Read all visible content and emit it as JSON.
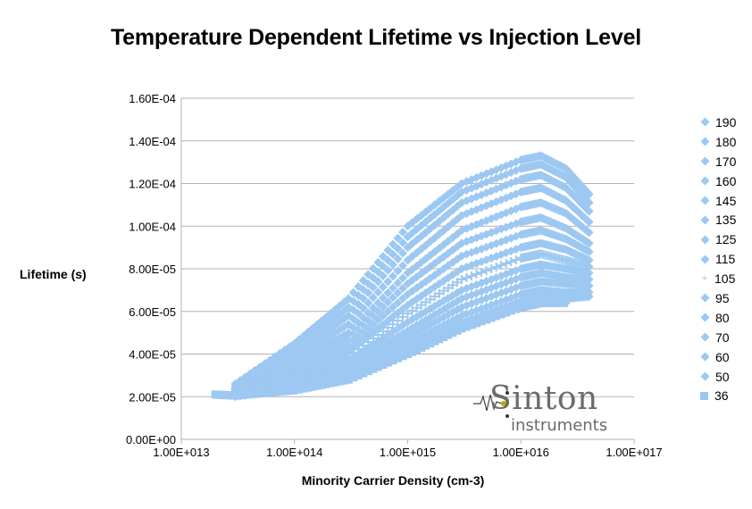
{
  "chart_data": {
    "type": "scatter",
    "title": "Temperature Dependent Lifetime vs Injection Level",
    "xlabel": "Minority Carrier Density (cm-3)",
    "ylabel": "Lifetime (s)",
    "x_scale": "log",
    "xlim": [
      10000000000000.0,
      1e+17
    ],
    "ylim": [
      0,
      0.00016
    ],
    "x_ticks": [
      "1.00E+013",
      "1.00E+014",
      "1.00E+015",
      "1.00E+016",
      "1.00E+017"
    ],
    "y_ticks": [
      "0.00E+00",
      "2.00E-05",
      "4.00E-05",
      "6.00E-05",
      "8.00E-05",
      "1.00E-04",
      "1.20E-04",
      "1.40E-04",
      "1.60E-04"
    ],
    "grid": "horizontal",
    "legend_position": "right",
    "marker_color": "#9cc8f2",
    "series": [
      {
        "name": "190",
        "marker": "diamond",
        "points": [
          [
            30000000000000.0,
            2.6e-05
          ],
          [
            100000000000000.0,
            4.5e-05
          ],
          [
            300000000000000.0,
            6.6e-05
          ],
          [
            1000000000000000.0,
            0.0001
          ],
          [
            3000000000000000.0,
            0.00012
          ],
          [
            1e+16,
            0.000131
          ],
          [
            1.5e+16,
            0.000133
          ],
          [
            2.5e+16,
            0.000127
          ],
          [
            4e+16,
            0.000115
          ]
        ]
      },
      {
        "name": "180",
        "marker": "diamond",
        "points": [
          [
            30000000000000.0,
            2.5e-05
          ],
          [
            100000000000000.0,
            4.2e-05
          ],
          [
            300000000000000.0,
            6.2e-05
          ],
          [
            1000000000000000.0,
            9.5e-05
          ],
          [
            3000000000000000.0,
            0.000116
          ],
          [
            1e+16,
            0.000127
          ],
          [
            1.5e+16,
            0.000129
          ],
          [
            2.5e+16,
            0.000123
          ],
          [
            4e+16,
            0.000111
          ]
        ]
      },
      {
        "name": "170",
        "marker": "diamond",
        "points": [
          [
            30000000000000.0,
            2.4e-05
          ],
          [
            100000000000000.0,
            4e-05
          ],
          [
            300000000000000.0,
            5.8e-05
          ],
          [
            1000000000000000.0,
            9e-05
          ],
          [
            3000000000000000.0,
            0.000111
          ],
          [
            1e+16,
            0.000122
          ],
          [
            1.5e+16,
            0.000124
          ],
          [
            2.5e+16,
            0.000118
          ],
          [
            4e+16,
            0.000107
          ]
        ]
      },
      {
        "name": "160",
        "marker": "diamond",
        "points": [
          [
            30000000000000.0,
            2.35e-05
          ],
          [
            100000000000000.0,
            3.8e-05
          ],
          [
            300000000000000.0,
            5.4e-05
          ],
          [
            1000000000000000.0,
            8.4e-05
          ],
          [
            3000000000000000.0,
            0.000105
          ],
          [
            1e+16,
            0.000116
          ],
          [
            1.5e+16,
            0.000118
          ],
          [
            2.5e+16,
            0.000112
          ],
          [
            4e+16,
            0.000102
          ]
        ]
      },
      {
        "name": "145",
        "marker": "diamond",
        "points": [
          [
            30000000000000.0,
            2.3e-05
          ],
          [
            100000000000000.0,
            3.6e-05
          ],
          [
            300000000000000.0,
            5e-05
          ],
          [
            1000000000000000.0,
            7.8e-05
          ],
          [
            3000000000000000.0,
            9.8e-05
          ],
          [
            1e+16,
            0.000109
          ],
          [
            1.5e+16,
            0.000111
          ],
          [
            2.5e+16,
            0.000106
          ],
          [
            4e+16,
            9.7e-05
          ]
        ]
      },
      {
        "name": "135",
        "marker": "diamond",
        "points": [
          [
            30000000000000.0,
            2.25e-05
          ],
          [
            100000000000000.0,
            3.4e-05
          ],
          [
            300000000000000.0,
            4.7e-05
          ],
          [
            1000000000000000.0,
            7.3e-05
          ],
          [
            3000000000000000.0,
            9.2e-05
          ],
          [
            1e+16,
            0.000102
          ],
          [
            1.5e+16,
            0.000104
          ],
          [
            2.5e+16,
            9.9e-05
          ],
          [
            4e+16,
            9.2e-05
          ]
        ]
      },
      {
        "name": "125",
        "marker": "diamond",
        "points": [
          [
            30000000000000.0,
            2.2e-05
          ],
          [
            100000000000000.0,
            3.2e-05
          ],
          [
            300000000000000.0,
            4.4e-05
          ],
          [
            1000000000000000.0,
            6.8e-05
          ],
          [
            3000000000000000.0,
            8.6e-05
          ],
          [
            1e+16,
            9.6e-05
          ],
          [
            1.5e+16,
            9.8e-05
          ],
          [
            2.5e+16,
            9.4e-05
          ],
          [
            4e+16,
            8.8e-05
          ]
        ]
      },
      {
        "name": "115",
        "marker": "diamond",
        "points": [
          [
            30000000000000.0,
            2.15e-05
          ],
          [
            100000000000000.0,
            3e-05
          ],
          [
            300000000000000.0,
            4.1e-05
          ],
          [
            1000000000000000.0,
            6.3e-05
          ],
          [
            3000000000000000.0,
            8e-05
          ],
          [
            1e+16,
            9e-05
          ],
          [
            1.5e+16,
            9.2e-05
          ],
          [
            2.5e+16,
            8.9e-05
          ],
          [
            4e+16,
            8.4e-05
          ]
        ]
      },
      {
        "name": "105",
        "marker": "star",
        "points": [
          [
            30000000000000.0,
            2.1e-05
          ],
          [
            100000000000000.0,
            2.9e-05
          ],
          [
            300000000000000.0,
            3.9e-05
          ],
          [
            1000000000000000.0,
            5.9e-05
          ],
          [
            3000000000000000.0,
            7.5e-05
          ],
          [
            1e+16,
            8.5e-05
          ],
          [
            1.5e+16,
            8.7e-05
          ],
          [
            2.5e+16,
            8.4e-05
          ],
          [
            4e+16,
            8.1e-05
          ]
        ]
      },
      {
        "name": "95",
        "marker": "diamond",
        "points": [
          [
            30000000000000.0,
            2.1e-05
          ],
          [
            100000000000000.0,
            2.8e-05
          ],
          [
            300000000000000.0,
            3.7e-05
          ],
          [
            1000000000000000.0,
            5.5e-05
          ],
          [
            3000000000000000.0,
            7e-05
          ],
          [
            1e+16,
            8e-05
          ],
          [
            1.5e+16,
            8.2e-05
          ],
          [
            2.5e+16,
            8e-05
          ],
          [
            4e+16,
            7.8e-05
          ]
        ]
      },
      {
        "name": "80",
        "marker": "diamond",
        "points": [
          [
            30000000000000.0,
            2.05e-05
          ],
          [
            100000000000000.0,
            2.7e-05
          ],
          [
            300000000000000.0,
            3.5e-05
          ],
          [
            1000000000000000.0,
            5.1e-05
          ],
          [
            3000000000000000.0,
            6.6e-05
          ],
          [
            1e+16,
            7.6e-05
          ],
          [
            1.5e+16,
            7.8e-05
          ],
          [
            2.5e+16,
            7.6e-05
          ],
          [
            4e+16,
            7.5e-05
          ]
        ]
      },
      {
        "name": "70",
        "marker": "diamond",
        "points": [
          [
            30000000000000.0,
            2.05e-05
          ],
          [
            100000000000000.0,
            2.6e-05
          ],
          [
            300000000000000.0,
            3.3e-05
          ],
          [
            1000000000000000.0,
            4.8e-05
          ],
          [
            3000000000000000.0,
            6.2e-05
          ],
          [
            1e+16,
            7.2e-05
          ],
          [
            1.5e+16,
            7.4e-05
          ],
          [
            2.5e+16,
            7.3e-05
          ],
          [
            4e+16,
            7.2e-05
          ]
        ]
      },
      {
        "name": "60",
        "marker": "diamond",
        "points": [
          [
            30000000000000.0,
            2e-05
          ],
          [
            100000000000000.0,
            2.5e-05
          ],
          [
            300000000000000.0,
            3.1e-05
          ],
          [
            1000000000000000.0,
            4.5e-05
          ],
          [
            3000000000000000.0,
            5.8e-05
          ],
          [
            1e+16,
            6.8e-05
          ],
          [
            1.5e+16,
            7e-05
          ],
          [
            2.5e+16,
            6.9e-05
          ],
          [
            4e+16,
            6.9e-05
          ]
        ]
      },
      {
        "name": "50",
        "marker": "diamond",
        "points": [
          [
            30000000000000.0,
            2e-05
          ],
          [
            100000000000000.0,
            2.4e-05
          ],
          [
            300000000000000.0,
            2.9e-05
          ],
          [
            1000000000000000.0,
            4.2e-05
          ],
          [
            3000000000000000.0,
            5.5e-05
          ],
          [
            1e+16,
            6.5e-05
          ],
          [
            1.5e+16,
            6.7e-05
          ],
          [
            2.5e+16,
            6.6e-05
          ],
          [
            4e+16,
            6.7e-05
          ]
        ]
      },
      {
        "name": "36",
        "marker": "square",
        "points": [
          [
            20000000000000.0,
            2.1e-05
          ],
          [
            30000000000000.0,
            2.05e-05
          ],
          [
            100000000000000.0,
            2.3e-05
          ],
          [
            300000000000000.0,
            2.8e-05
          ],
          [
            1000000000000000.0,
            4e-05
          ],
          [
            3000000000000000.0,
            5.2e-05
          ],
          [
            1e+16,
            6.2e-05
          ],
          [
            1.5e+16,
            6.4e-05
          ],
          [
            2.5e+16,
            6.4e-05
          ]
        ]
      }
    ]
  },
  "logo": {
    "brand": "Sinton",
    "sub": "instruments"
  }
}
